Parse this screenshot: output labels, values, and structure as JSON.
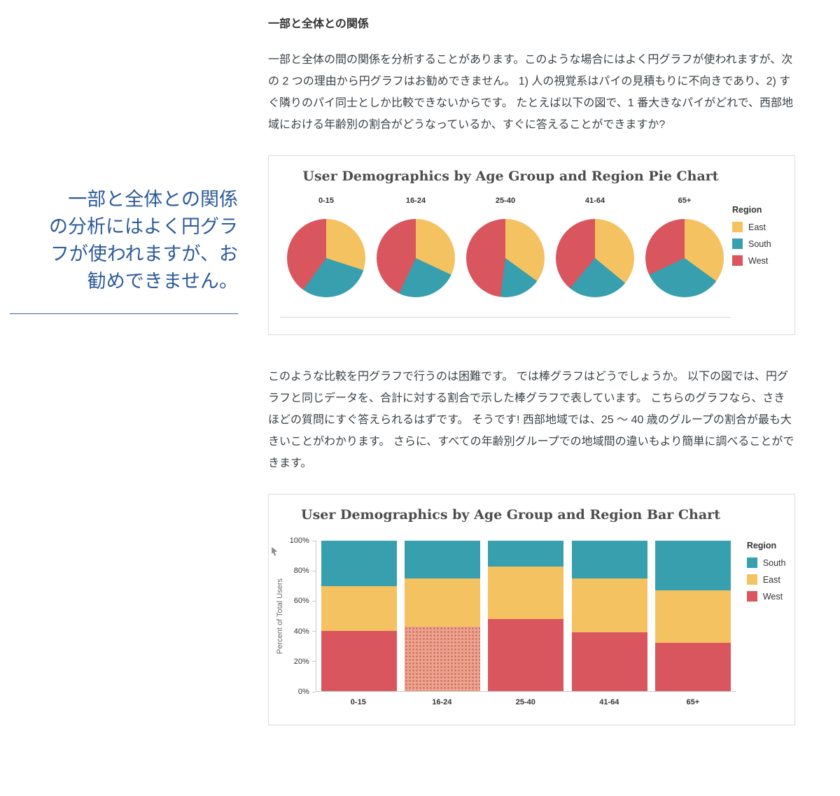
{
  "theme": {
    "pull_quote_color": "#2e5b9a",
    "body_text_color": "#3b4146"
  },
  "icons": {
    "bar_figure_pointer": "cursor-icon"
  },
  "pull_quote": {
    "text": "一部と全体との関係\nの分析にはよく円グラ\nフが使われますが、お\n勧めできません。"
  },
  "article": {
    "heading": "一部と全体との関係",
    "paragraph1": "一部と全体の間の関係を分析することがあります。このような場合にはよく円グラフが使われますが、次の 2 つの理由から円グラフはお勧めできません。 1) 人の視覚系はパイの見積もりに不向きであり、2) すぐ隣りのパイ同士としか比較できないからです。 たとえば以下の図で、1 番大きなパイがどれで、西部地域における年齢別の割合がどうなっているか、すぐに答えることができますか?",
    "paragraph2": "このような比較を円グラフで行うのは困難です。 では棒グラフはどうでしょうか。 以下の図では、円グラフと同じデータを、合計に対する割合で示した棒グラフで表しています。 こちらのグラフなら、さきほどの質問にすぐ答えられるはずです。 そうです! 西部地域では、25 ～ 40 歳のグループの割合が最も大きいことがわかります。 さらに、すべての年齢別グループでの地域間の違いもより簡単に調べることができます。"
  },
  "chart_data": [
    {
      "type": "pie",
      "title": "User Demographics by Age Group and Region Pie Chart",
      "categories": [
        "0-15",
        "16-24",
        "25-40",
        "41-64",
        "65+"
      ],
      "legend_title": "Region",
      "legend": [
        "East",
        "South",
        "West"
      ],
      "colors": {
        "East": "#f4c261",
        "South": "#379fae",
        "West": "#d9565e"
      },
      "slice_order": [
        "East",
        "South",
        "West"
      ],
      "values": {
        "East": [
          30,
          32,
          35,
          36,
          35
        ],
        "South": [
          30,
          25,
          17,
          25,
          33
        ],
        "West": [
          40,
          43,
          48,
          39,
          32
        ]
      }
    },
    {
      "type": "stacked_bar",
      "title": "User Demographics by Age Group and Region Bar Chart",
      "categories": [
        "0-15",
        "16-24",
        "25-40",
        "41-64",
        "65+"
      ],
      "legend_title": "Region",
      "legend": [
        "South",
        "East",
        "West"
      ],
      "colors": {
        "South": "#379fae",
        "East": "#f4c261",
        "West": "#d9565e"
      },
      "ylabel": "Percent of Total Users",
      "yticks": [
        "0%",
        "20%",
        "40%",
        "60%",
        "80%",
        "100%"
      ],
      "ylim": [
        0,
        100
      ],
      "stack_order_bottom_to_top": [
        "West",
        "East",
        "South"
      ],
      "values": {
        "West": [
          40,
          43,
          48,
          39,
          32
        ],
        "East": [
          30,
          32,
          35,
          36,
          35
        ],
        "South": [
          30,
          25,
          17,
          25,
          33
        ]
      },
      "highlight": {
        "category": "16-24",
        "series": "West",
        "fill": "#eba48f"
      }
    }
  ]
}
